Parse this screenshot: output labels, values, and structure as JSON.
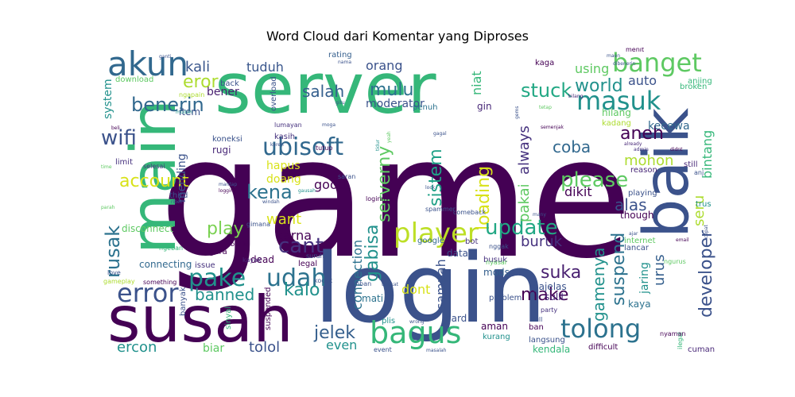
{
  "title": "Word Cloud dari Komentar yang Diproses",
  "palette": {
    "dark_purple": "#440154",
    "indigo": "#472d7b",
    "slate_blue": "#3b528b",
    "steel_blue": "#2c728e",
    "teal": "#21918c",
    "sea_green": "#28ae80",
    "green": "#5ec962",
    "lime": "#addc30",
    "yellow": "#d8e219"
  },
  "words": [
    {
      "text": "game",
      "color": "#440154"
    },
    {
      "text": "login",
      "color": "#3b528b"
    },
    {
      "text": "server",
      "color": "#35b779"
    },
    {
      "text": "susah",
      "color": "#440154"
    },
    {
      "text": "main",
      "color": "#35b779"
    },
    {
      "text": "baik",
      "color": "#3b528b"
    },
    {
      "text": "akun",
      "color": "#31688e"
    },
    {
      "text": "banget",
      "color": "#5ec962"
    },
    {
      "text": "masuk",
      "color": "#21918c"
    },
    {
      "text": "tolong",
      "color": "#2c728e"
    },
    {
      "text": "bagus",
      "color": "#35b779"
    },
    {
      "text": "error",
      "color": "#3b528b"
    },
    {
      "text": "player",
      "color": "#bddf26"
    },
    {
      "text": "pake",
      "color": "#21918c"
    },
    {
      "text": "udah",
      "color": "#2c728e"
    },
    {
      "text": "ubisoft",
      "color": "#31688e"
    },
    {
      "text": "benerin",
      "color": "#31688e"
    },
    {
      "text": "eror",
      "color": "#addc30"
    },
    {
      "text": "wifi",
      "color": "#3b528b"
    },
    {
      "text": "kali",
      "color": "#39568c"
    },
    {
      "text": "tuduh",
      "color": "#39568c"
    },
    {
      "text": "mulu",
      "color": "#2c728e"
    },
    {
      "text": "salah",
      "color": "#355f8d"
    },
    {
      "text": "orang",
      "color": "#3b528b"
    },
    {
      "text": "stuck",
      "color": "#22a884"
    },
    {
      "text": "world",
      "color": "#21918c"
    },
    {
      "text": "using",
      "color": "#5ec962"
    },
    {
      "text": "auto",
      "color": "#3b528b"
    },
    {
      "text": "bener",
      "color": "#481f70"
    },
    {
      "text": "account",
      "color": "#d8e219"
    },
    {
      "text": "kena",
      "color": "#2c728e"
    },
    {
      "text": "serverny",
      "color": "#5ec962"
    },
    {
      "text": "sistem",
      "color": "#1fa187"
    },
    {
      "text": "loading",
      "color": "#d8e219"
    },
    {
      "text": "coba",
      "color": "#31688e"
    },
    {
      "text": "please",
      "color": "#5ec962"
    },
    {
      "text": "aneh",
      "color": "#440154"
    },
    {
      "text": "mohon",
      "color": "#addc30"
    },
    {
      "text": "seru",
      "color": "#addc30"
    },
    {
      "text": "bintang",
      "color": "#35b779"
    },
    {
      "text": "kecewa",
      "color": "#31688e"
    },
    {
      "text": "update",
      "color": "#22a884"
    },
    {
      "text": "gabisa",
      "color": "#21918c"
    },
    {
      "text": "rusak",
      "color": "#2c728e"
    },
    {
      "text": "cant",
      "color": "#46327e"
    },
    {
      "text": "want",
      "color": "#d8e219"
    },
    {
      "text": "play",
      "color": "#7ad151"
    },
    {
      "text": "karna",
      "color": "#440154"
    },
    {
      "text": "kalo",
      "color": "#21918c"
    },
    {
      "text": "banned",
      "color": "#21918c"
    },
    {
      "text": "gamenya",
      "color": "#21918c"
    },
    {
      "text": "suspend",
      "color": "#2c728e"
    },
    {
      "text": "developer",
      "color": "#3b528b"
    },
    {
      "text": "suka",
      "color": "#481f70"
    },
    {
      "text": "buruk",
      "color": "#46327e"
    },
    {
      "text": "alas",
      "color": "#3b528b"
    },
    {
      "text": "dikit",
      "color": "#440154"
    },
    {
      "text": "make",
      "color": "#440154"
    },
    {
      "text": "jelek",
      "color": "#355f8d"
    },
    {
      "text": "ercon",
      "color": "#21918c"
    },
    {
      "text": "tolol",
      "color": "#3b528b"
    },
    {
      "text": "biar",
      "color": "#5ec962"
    },
    {
      "text": "even",
      "color": "#21918c"
    },
    {
      "text": "dont",
      "color": "#d8e219"
    },
    {
      "text": "sampah",
      "color": "#3b528b"
    },
    {
      "text": "connection",
      "color": "#2c728e"
    },
    {
      "text": "good",
      "color": "#440154"
    },
    {
      "text": "hapus",
      "color": "#d8e219"
    },
    {
      "text": "doang",
      "color": "#d8e219"
    },
    {
      "text": "mending",
      "color": "#3b528b"
    },
    {
      "text": "pakai",
      "color": "#5ec962"
    },
    {
      "text": "always",
      "color": "#46327e"
    },
    {
      "text": "jaring",
      "color": "#21918c"
    },
    {
      "text": "urus",
      "color": "#355f8d"
    },
    {
      "text": "gajelas",
      "color": "#3b528b"
    },
    {
      "text": "kaya",
      "color": "#2c728e"
    },
    {
      "text": "niat",
      "color": "#35b779"
    },
    {
      "text": "moderator",
      "color": "#3b528b"
    },
    {
      "text": "gin",
      "color": "#482878"
    },
    {
      "text": "item",
      "color": "#3b528b"
    },
    {
      "text": "system",
      "color": "#21918c"
    },
    {
      "text": "download",
      "color": "#5ec962"
    },
    {
      "text": "ngapain",
      "color": "#addc30"
    },
    {
      "text": "koneksi",
      "color": "#3b528b"
    },
    {
      "text": "rugi",
      "color": "#482878"
    },
    {
      "text": "limit",
      "color": "#46327e"
    },
    {
      "text": "third",
      "color": "#3b528b"
    },
    {
      "text": "disconnect",
      "color": "#5ec962"
    },
    {
      "text": "connecting",
      "color": "#31688e"
    },
    {
      "text": "issue",
      "color": "#46327e"
    },
    {
      "text": "dead",
      "color": "#440154"
    },
    {
      "text": "banyak",
      "color": "#3b528b"
    },
    {
      "text": "sinyal",
      "color": "#35b779"
    },
    {
      "text": "suspended",
      "color": "#440154"
    },
    {
      "text": "google",
      "color": "#31688e"
    },
    {
      "text": "bot",
      "color": "#46327e"
    },
    {
      "text": "data",
      "color": "#3b528b"
    },
    {
      "text": "mati",
      "color": "#2c728e"
    },
    {
      "text": "plis",
      "color": "#21918c"
    },
    {
      "text": "hard",
      "color": "#3b528b"
    },
    {
      "text": "sulit",
      "color": "#482878"
    },
    {
      "text": "problem",
      "color": "#3b528b"
    },
    {
      "text": "mods",
      "color": "#355f8d"
    },
    {
      "text": "busuk",
      "color": "#46327e"
    },
    {
      "text": "aman",
      "color": "#440154"
    },
    {
      "text": "kurang",
      "color": "#21918c"
    },
    {
      "text": "langsung",
      "color": "#3b528b"
    },
    {
      "text": "kendala",
      "color": "#35b779"
    },
    {
      "text": "difficult",
      "color": "#440154"
    },
    {
      "text": "lancar",
      "color": "#3b528b"
    },
    {
      "text": "internet",
      "color": "#5ec962"
    },
    {
      "text": "playing",
      "color": "#3b528b"
    },
    {
      "text": "though",
      "color": "#440154"
    },
    {
      "text": "reason",
      "color": "#482878"
    },
    {
      "text": "hilang",
      "color": "#5ec962"
    },
    {
      "text": "kadang",
      "color": "#addc30"
    },
    {
      "text": "rating",
      "color": "#355f8d"
    },
    {
      "text": "overload",
      "color": "#3b528b"
    },
    {
      "text": "penuh",
      "color": "#2c728e"
    },
    {
      "text": "kaga",
      "color": "#440154"
    },
    {
      "text": "anjing",
      "color": "#35b779"
    },
    {
      "text": "broken",
      "color": "#35b779"
    },
    {
      "text": "still",
      "color": "#482878"
    },
    {
      "text": "trus",
      "color": "#21918c"
    },
    {
      "text": "cuman",
      "color": "#482878"
    },
    {
      "text": "ilegal",
      "color": "#35b779"
    },
    {
      "text": "legal",
      "color": "#440154"
    },
    {
      "text": "kasih",
      "color": "#46327e"
    },
    {
      "text": "tutup",
      "color": "#440154"
    },
    {
      "text": "event",
      "color": "#3b528b"
    },
    {
      "text": "gara",
      "color": "#440154"
    },
    {
      "text": "back",
      "color": "#3b528b"
    },
    {
      "text": "ban",
      "color": "#440154"
    },
    {
      "text": "full",
      "color": "#3b528b"
    },
    {
      "text": "party",
      "color": "#46327e"
    },
    {
      "text": "saran",
      "color": "#3b528b"
    },
    {
      "text": "gimana",
      "color": "#3b528b"
    },
    {
      "text": "burik",
      "color": "#440154"
    },
    {
      "text": "ngeban",
      "color": "#35b779"
    },
    {
      "text": "kayak",
      "color": "#482878"
    },
    {
      "text": "suruh",
      "color": "#3b528b"
    },
    {
      "text": "love",
      "color": "#3b528b"
    },
    {
      "text": "gameplay",
      "color": "#addc30"
    },
    {
      "text": "something",
      "color": "#440154"
    },
    {
      "text": "kocak",
      "color": "#3b528b"
    },
    {
      "text": "unban",
      "color": "#3b528b"
    },
    {
      "text": "lumayan",
      "color": "#46327e"
    },
    {
      "text": "loginnya",
      "color": "#440154"
    },
    {
      "text": "spammer",
      "color": "#3b528b"
    },
    {
      "text": "comeback",
      "color": "#3b528b"
    },
    {
      "text": "nyasar",
      "color": "#5ec962"
    },
    {
      "text": "nggak",
      "color": "#3b528b"
    },
    {
      "text": "ngurus",
      "color": "#5ec962"
    },
    {
      "text": "nyaman",
      "color": "#440154"
    },
    {
      "text": "ganti",
      "color": "#3b528b"
    },
    {
      "text": "nama",
      "color": "#3b528b"
    },
    {
      "text": "mudah",
      "color": "#21918c"
    },
    {
      "text": "beli",
      "color": "#440154"
    },
    {
      "text": "time",
      "color": "#5ec962"
    },
    {
      "text": "selesai",
      "color": "#46327e"
    },
    {
      "text": "parah",
      "color": "#5ec962"
    },
    {
      "text": "ribet",
      "color": "#3b528b"
    },
    {
      "text": "mantap",
      "color": "#3b528b"
    },
    {
      "text": "logging",
      "color": "#440154"
    },
    {
      "text": "windah",
      "color": "#3b528b"
    },
    {
      "text": "gausah",
      "color": "#21918c"
    },
    {
      "text": "keren",
      "color": "#3b528b"
    },
    {
      "text": "bilang",
      "color": "#482878"
    },
    {
      "text": "tetap",
      "color": "#5ec962"
    },
    {
      "text": "menit",
      "color": "#440154"
    },
    {
      "text": "dibenerin",
      "color": "#3b528b"
    },
    {
      "text": "maen",
      "color": "#3b528b"
    },
    {
      "text": "already",
      "color": "#482878"
    },
    {
      "text": "admin",
      "color": "#46327e"
    },
    {
      "text": "didnt",
      "color": "#440154"
    },
    {
      "text": "cepat",
      "color": "#3b528b"
    },
    {
      "text": "email",
      "color": "#440154"
    },
    {
      "text": "ajar",
      "color": "#3b528b"
    },
    {
      "text": "many",
      "color": "#3b528b"
    },
    {
      "text": "anj",
      "color": "#3b528b"
    },
    {
      "text": "semenjak",
      "color": "#440154"
    },
    {
      "text": "tidur",
      "color": "#21918c"
    },
    {
      "text": "gagal",
      "color": "#3b528b"
    },
    {
      "text": "yeah",
      "color": "#5ec962"
    },
    {
      "text": "lock",
      "color": "#3b528b"
    },
    {
      "text": "moga",
      "color": "#3b528b"
    },
    {
      "text": "gitu",
      "color": "#3b528b"
    },
    {
      "text": "tingkat",
      "color": "#3b528b"
    },
    {
      "text": "masalah",
      "color": "#3b528b"
    },
    {
      "text": "wrong",
      "color": "#3b528b"
    },
    {
      "text": "gems",
      "color": "#3b528b"
    }
  ]
}
